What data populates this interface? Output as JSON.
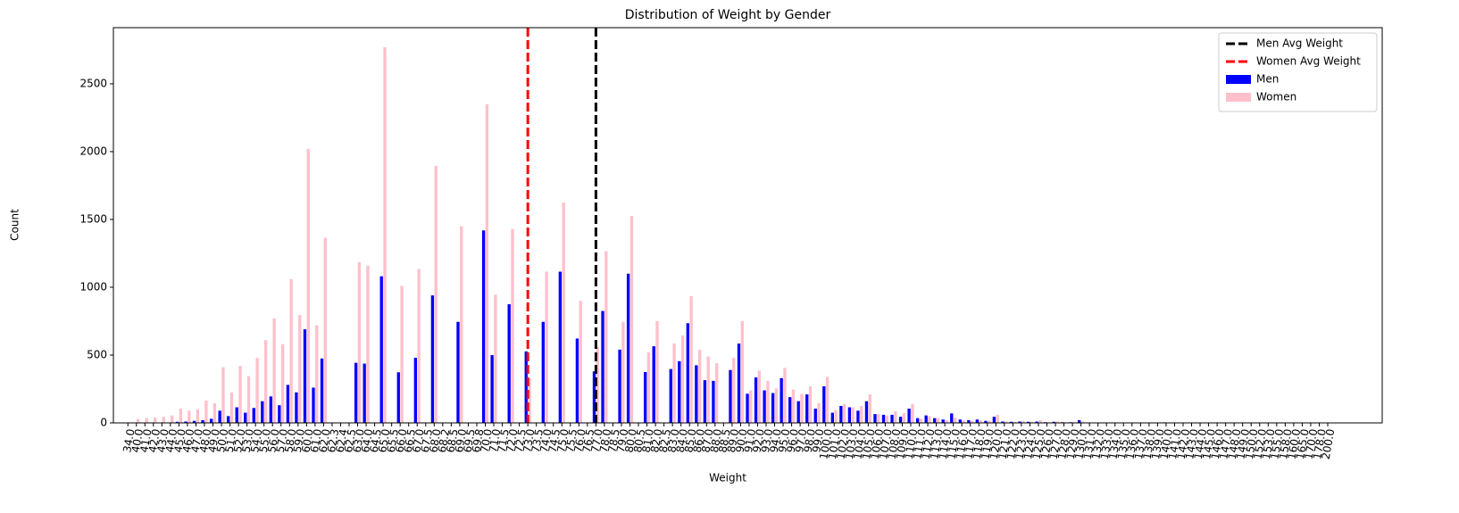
{
  "chart_data": {
    "type": "bar",
    "title": "Distribution of Weight by Gender",
    "x_label": "Weight",
    "y_label": "Count",
    "categories": [
      "34.0",
      "40.0",
      "41.0",
      "42.0",
      "43.0",
      "44.0",
      "45.0",
      "46.0",
      "47.0",
      "48.0",
      "49.0",
      "50.0",
      "51.0",
      "52.0",
      "53.0",
      "54.0",
      "55.0",
      "56.0",
      "57.0",
      "58.0",
      "59.0",
      "60.0",
      "61.0",
      "62.0",
      "62.3",
      "62.4",
      "62.5",
      "63.0",
      "64.0",
      "64.5",
      "65.0",
      "65.5",
      "66.0",
      "66.5",
      "67.0",
      "67.5",
      "68.0",
      "68.2",
      "68.5",
      "69.0",
      "69.5",
      "69.8",
      "70.0",
      "71.0",
      "71.5",
      "72.0",
      "72.5",
      "73.0",
      "73.5",
      "74.0",
      "74.5",
      "75.0",
      "75.5",
      "76.0",
      "76.5",
      "77.0",
      "78.0",
      "78.5",
      "79.0",
      "80.0",
      "80.5",
      "81.0",
      "82.0",
      "82.5",
      "83.0",
      "84.0",
      "85.0",
      "86.0",
      "87.0",
      "88.0",
      "88.5",
      "89.0",
      "90.0",
      "91.0",
      "92.0",
      "93.0",
      "94.0",
      "95.0",
      "96.0",
      "97.0",
      "98.0",
      "99.0",
      "100.0",
      "101.0",
      "102.0",
      "103.0",
      "104.0",
      "105.0",
      "106.0",
      "107.0",
      "108.0",
      "109.0",
      "110.0",
      "111.0",
      "112.0",
      "113.0",
      "114.0",
      "115.0",
      "116.0",
      "117.0",
      "118.0",
      "119.0",
      "120.0",
      "121.0",
      "122.0",
      "123.0",
      "124.0",
      "125.0",
      "126.0",
      "127.0",
      "128.0",
      "129.0",
      "130.0",
      "131.0",
      "132.0",
      "133.0",
      "134.0",
      "135.0",
      "136.0",
      "137.0",
      "138.0",
      "139.0",
      "140.0",
      "141.0",
      "142.0",
      "143.0",
      "144.0",
      "145.0",
      "146.0",
      "147.0",
      "148.0",
      "149.0",
      "150.0",
      "152.0",
      "153.0",
      "155.0",
      "158.0",
      "160.0",
      "165.0",
      "170.0",
      "178.0",
      "200.0"
    ],
    "series": [
      {
        "name": "Men",
        "color": "#0000ff",
        "values": [
          0,
          0,
          0,
          0,
          0,
          0,
          8,
          10,
          15,
          20,
          30,
          90,
          50,
          115,
          75,
          110,
          160,
          195,
          130,
          280,
          225,
          690,
          260,
          475,
          0,
          0,
          0,
          443,
          437,
          0,
          1081,
          0,
          373,
          0,
          480,
          0,
          940,
          0,
          0,
          745,
          0,
          0,
          1419,
          500,
          0,
          875,
          0,
          527,
          0,
          745,
          0,
          1115,
          0,
          622,
          0,
          380,
          825,
          0,
          540,
          1100,
          0,
          375,
          565,
          0,
          397,
          455,
          735,
          425,
          315,
          310,
          0,
          390,
          585,
          215,
          335,
          240,
          220,
          330,
          190,
          160,
          210,
          105,
          270,
          75,
          125,
          115,
          90,
          160,
          65,
          60,
          60,
          45,
          105,
          35,
          55,
          35,
          25,
          70,
          25,
          20,
          25,
          15,
          45,
          10,
          8,
          10,
          8,
          10,
          5,
          8,
          5,
          5,
          20,
          3,
          2,
          2,
          1,
          3,
          2,
          1,
          1,
          2,
          4,
          1,
          1,
          1,
          1,
          1,
          1,
          1,
          1,
          1,
          3,
          1,
          1,
          1,
          1,
          1,
          1,
          1,
          1,
          1
        ]
      },
      {
        "name": "Women",
        "color": "#ffc0cb",
        "values": [
          2,
          30,
          35,
          40,
          45,
          55,
          105,
          90,
          100,
          165,
          145,
          410,
          225,
          420,
          345,
          480,
          610,
          770,
          580,
          1060,
          795,
          2020,
          720,
          1365,
          2,
          2,
          0,
          1185,
          1160,
          0,
          2770,
          0,
          1010,
          0,
          1135,
          0,
          1895,
          0,
          0,
          1450,
          0,
          0,
          2350,
          945,
          0,
          1430,
          0,
          330,
          0,
          1115,
          0,
          1625,
          0,
          900,
          0,
          560,
          1265,
          0,
          745,
          1525,
          0,
          520,
          750,
          0,
          585,
          645,
          935,
          540,
          490,
          440,
          0,
          480,
          750,
          240,
          385,
          310,
          255,
          405,
          245,
          215,
          270,
          145,
          340,
          95,
          140,
          115,
          125,
          210,
          65,
          55,
          85,
          70,
          140,
          30,
          50,
          35,
          20,
          40,
          20,
          15,
          20,
          15,
          60,
          10,
          8,
          15,
          8,
          20,
          5,
          10,
          5,
          5,
          10,
          2,
          1,
          2,
          1,
          1,
          1,
          3,
          1,
          1,
          2,
          1,
          1,
          0,
          1,
          1,
          1,
          0,
          1,
          0,
          2,
          1,
          0,
          1,
          0,
          1,
          0,
          0,
          1,
          1
        ]
      }
    ],
    "lines": [
      {
        "name": "Men Avg Weight",
        "color": "#000000",
        "x": 55.0
      },
      {
        "name": "Women Avg Weight",
        "color": "#ff0000",
        "x": 47.0
      }
    ],
    "xlim": [
      -1.7,
      147.4
    ],
    "ylim": [
      0,
      2914
    ],
    "yticks": [
      0,
      500,
      1000,
      1500,
      2000,
      2500
    ],
    "legend": "upper right"
  }
}
